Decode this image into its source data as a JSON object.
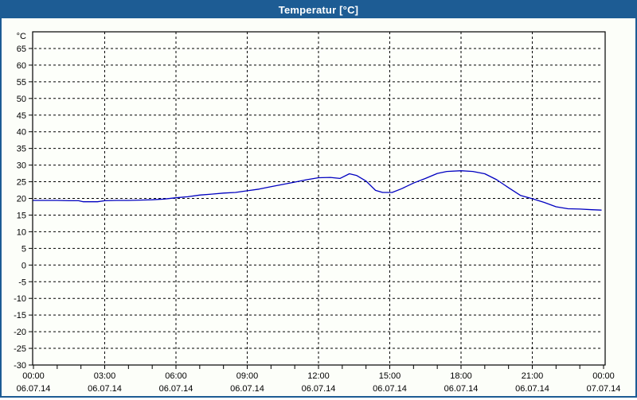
{
  "window": {
    "title": "Temperatur [°C]"
  },
  "colors": {
    "titlebar_bg": "#1D5C94",
    "titlebar_text": "#FFFFFF",
    "window_border": "#1D5C94",
    "content_bg": "#FCFEF9",
    "plot_bg": "#FDFFFA",
    "axis": "#000000",
    "grid": "#000000",
    "label_text": "#000000",
    "line": "#0000C0"
  },
  "chart_data": {
    "type": "line",
    "title": "Temperatur [°C]",
    "ylabel": "°C",
    "xlabel": "",
    "grid": "dashed",
    "legend_position": "none",
    "y_axis": {
      "unit_label": "°C",
      "ylim": [
        -30,
        70
      ],
      "tick_min": -30,
      "tick_max": 65,
      "tick_step": 5,
      "tick_labels": [
        "65",
        "60",
        "55",
        "50",
        "45",
        "40",
        "35",
        "30",
        "25",
        "20",
        "15",
        "10",
        "5",
        "0",
        "-5",
        "-10",
        "-15",
        "-20",
        "-25",
        "-30"
      ]
    },
    "x_axis": {
      "hours_range": [
        0,
        24
      ],
      "minor_tick_every_hours": 1,
      "gridline_hours": [
        3,
        6,
        9,
        12,
        15,
        18,
        21
      ],
      "major_ticks": [
        {
          "hour": 0,
          "time": "00:00",
          "date": "06.07.14"
        },
        {
          "hour": 3,
          "time": "03:00",
          "date": "06.07.14"
        },
        {
          "hour": 6,
          "time": "06:00",
          "date": "06.07.14"
        },
        {
          "hour": 9,
          "time": "09:00",
          "date": "06.07.14"
        },
        {
          "hour": 12,
          "time": "12:00",
          "date": "06.07.14"
        },
        {
          "hour": 15,
          "time": "15:00",
          "date": "06.07.14"
        },
        {
          "hour": 18,
          "time": "18:00",
          "date": "06.07.14"
        },
        {
          "hour": 21,
          "time": "21:00",
          "date": "06.07.14"
        },
        {
          "hour": 24,
          "time": "00:00",
          "date": "07.07.14"
        }
      ]
    },
    "series": [
      {
        "name": "Temperatur",
        "color": "#0000C0",
        "points_hour_degC": [
          [
            0.0,
            19.4
          ],
          [
            0.5,
            19.4
          ],
          [
            1.0,
            19.4
          ],
          [
            1.5,
            19.3
          ],
          [
            1.9,
            19.3
          ],
          [
            2.1,
            19.0
          ],
          [
            2.7,
            19.0
          ],
          [
            3.0,
            19.3
          ],
          [
            3.5,
            19.4
          ],
          [
            4.0,
            19.4
          ],
          [
            4.5,
            19.5
          ],
          [
            5.0,
            19.6
          ],
          [
            5.5,
            19.8
          ],
          [
            6.0,
            20.2
          ],
          [
            6.5,
            20.5
          ],
          [
            7.0,
            21.0
          ],
          [
            7.5,
            21.3
          ],
          [
            8.0,
            21.6
          ],
          [
            8.5,
            21.8
          ],
          [
            9.0,
            22.3
          ],
          [
            9.5,
            22.8
          ],
          [
            10.0,
            23.5
          ],
          [
            10.5,
            24.2
          ],
          [
            11.0,
            24.9
          ],
          [
            11.5,
            25.6
          ],
          [
            12.0,
            26.2
          ],
          [
            12.5,
            26.3
          ],
          [
            12.9,
            26.0
          ],
          [
            13.3,
            27.4
          ],
          [
            13.6,
            26.9
          ],
          [
            14.0,
            25.2
          ],
          [
            14.4,
            22.4
          ],
          [
            14.7,
            21.8
          ],
          [
            15.1,
            21.8
          ],
          [
            15.5,
            22.9
          ],
          [
            16.0,
            24.6
          ],
          [
            16.5,
            26.0
          ],
          [
            17.0,
            27.5
          ],
          [
            17.4,
            28.1
          ],
          [
            18.0,
            28.3
          ],
          [
            18.5,
            28.1
          ],
          [
            19.0,
            27.4
          ],
          [
            19.5,
            25.6
          ],
          [
            20.0,
            23.2
          ],
          [
            20.5,
            20.9
          ],
          [
            21.0,
            19.9
          ],
          [
            21.5,
            18.8
          ],
          [
            22.0,
            17.5
          ],
          [
            22.5,
            16.9
          ],
          [
            23.0,
            16.8
          ],
          [
            23.5,
            16.6
          ],
          [
            23.9,
            16.5
          ]
        ]
      }
    ]
  }
}
